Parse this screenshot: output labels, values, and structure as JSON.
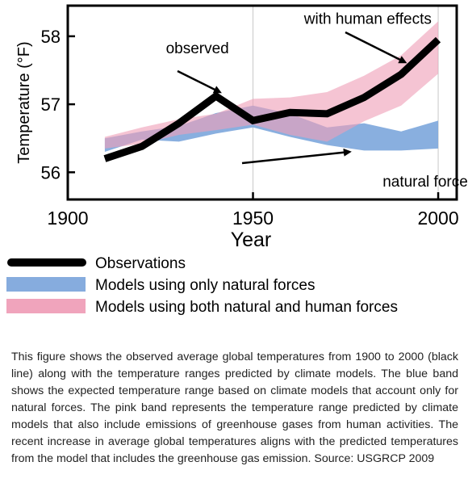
{
  "chart_data": {
    "type": "line",
    "xlabel": "Year",
    "ylabel": "Temperature (°F)",
    "xlim": [
      1900,
      2005
    ],
    "ylim": [
      55.6,
      58.45
    ],
    "xticks": [
      1900,
      1950,
      2000
    ],
    "yticks": [
      56,
      57,
      58
    ],
    "xtick_labels": [
      "1900",
      "1950",
      "2000"
    ],
    "ytick_labels": [
      "56",
      "57",
      "58"
    ],
    "grid": "vertical",
    "legend_position": "bottom",
    "series": [
      {
        "name": "Observations",
        "kind": "line",
        "color": "#000000",
        "x": [
          1910,
          1920,
          1930,
          1940,
          1950,
          1960,
          1970,
          1980,
          1990,
          2000
        ],
        "y": [
          56.2,
          56.38,
          56.72,
          57.12,
          56.76,
          56.88,
          56.86,
          57.1,
          57.44,
          57.95
        ]
      },
      {
        "name": "Models using only natural forces",
        "kind": "band",
        "color": "#7fa8dc",
        "x": [
          1910,
          1920,
          1930,
          1940,
          1950,
          1960,
          1970,
          1980,
          1990,
          2000
        ],
        "lower": [
          56.3,
          56.48,
          56.45,
          56.57,
          56.66,
          56.52,
          56.4,
          56.32,
          56.32,
          56.35
        ],
        "upper": [
          56.5,
          56.6,
          56.68,
          56.87,
          56.98,
          56.86,
          56.66,
          56.72,
          56.6,
          56.76
        ]
      },
      {
        "name": "Models using both natural and human forces",
        "kind": "band",
        "color": "#ef9fb8",
        "x": [
          1910,
          1920,
          1930,
          1940,
          1950,
          1960,
          1970,
          1980,
          1990,
          2000
        ],
        "lower": [
          56.35,
          56.42,
          56.55,
          56.62,
          56.7,
          56.55,
          56.45,
          56.75,
          56.98,
          57.45
        ],
        "upper": [
          56.52,
          56.66,
          56.78,
          56.86,
          57.08,
          57.1,
          57.18,
          57.42,
          57.72,
          58.22
        ]
      }
    ],
    "annotations": [
      {
        "text": "observed",
        "x": 1935,
        "y": 57.75,
        "arrow_to": [
          1941,
          57.18
        ]
      },
      {
        "text": "with human effects",
        "x": 1981,
        "y": 58.18,
        "arrow_to": [
          1991,
          57.62
        ]
      },
      {
        "text": "natural forces only",
        "x": 1985,
        "y": 55.98,
        "arrow_to": [
          1976,
          56.3
        ]
      }
    ],
    "legend": [
      {
        "label": "Observations",
        "swatch": "line",
        "color": "#000000"
      },
      {
        "label": "Models using only natural forces",
        "swatch": "band",
        "color": "#7fa8dc"
      },
      {
        "label": "Models using both natural and human forces",
        "swatch": "band",
        "color": "#ef9fb8"
      }
    ]
  },
  "caption": "This figure shows the observed average global temperatures from 1900 to 2000 (black line) along with the temperature ranges predicted by climate models. The blue band shows the expected temperature range based on climate models that account only for natural forces. The pink band represents the temperature range predicted by climate models that also include emissions of greenhouse gases from human activities. The recent increase in average global temperatures aligns with the predicted temperatures from the model that includes the greenhouse gas emission. Source: USGRCP 2009"
}
